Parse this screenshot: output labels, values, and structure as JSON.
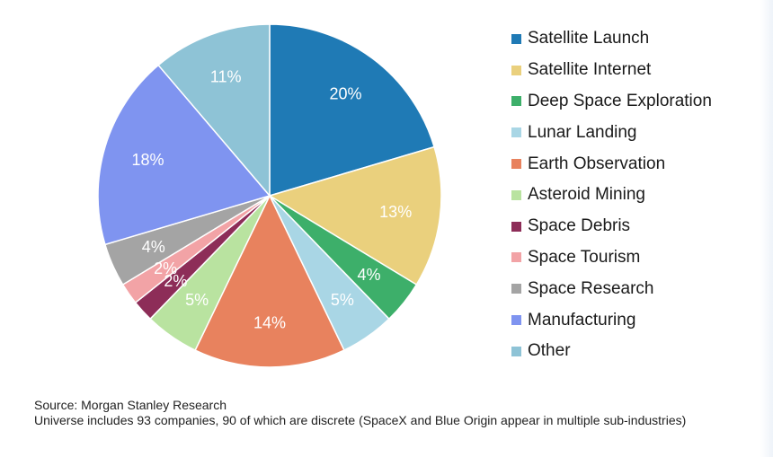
{
  "chart_data": {
    "type": "pie",
    "title": "",
    "start_angle_deg": 0,
    "direction": "clockwise",
    "legend_position": "right",
    "slices": [
      {
        "label": "Satellite Launch",
        "value": 20,
        "value_label": "20%",
        "color": "#1f7ab5"
      },
      {
        "label": "Satellite Internet",
        "value": 13,
        "value_label": "13%",
        "color": "#ead07d"
      },
      {
        "label": "Deep Space Exploration",
        "value": 4,
        "value_label": "4%",
        "color": "#3daf6a"
      },
      {
        "label": "Lunar Landing",
        "value": 5,
        "value_label": "5%",
        "color": "#a9d6e5"
      },
      {
        "label": "Earth Observation",
        "value": 14,
        "value_label": "14%",
        "color": "#e8825e"
      },
      {
        "label": "Asteroid Mining",
        "value": 5,
        "value_label": "5%",
        "color": "#b9e3a0"
      },
      {
        "label": "Space Debris",
        "value": 2,
        "value_label": "2%",
        "color": "#8d2d58"
      },
      {
        "label": "Space Tourism",
        "value": 2,
        "value_label": "2%",
        "color": "#f2a3a6"
      },
      {
        "label": "Space Research",
        "value": 4,
        "value_label": "4%",
        "color": "#a4a4a4"
      },
      {
        "label": "Manufacturing",
        "value": 18,
        "value_label": "18%",
        "color": "#7f94f0"
      },
      {
        "label": "Other",
        "value": 11,
        "value_label": "11%",
        "color": "#8ec3d6"
      }
    ]
  },
  "footnote": {
    "source": "Source: Morgan Stanley Research",
    "note": "Universe includes 93 companies, 90 of which are discrete (SpaceX and Blue Origin appear in multiple sub-industries)"
  }
}
